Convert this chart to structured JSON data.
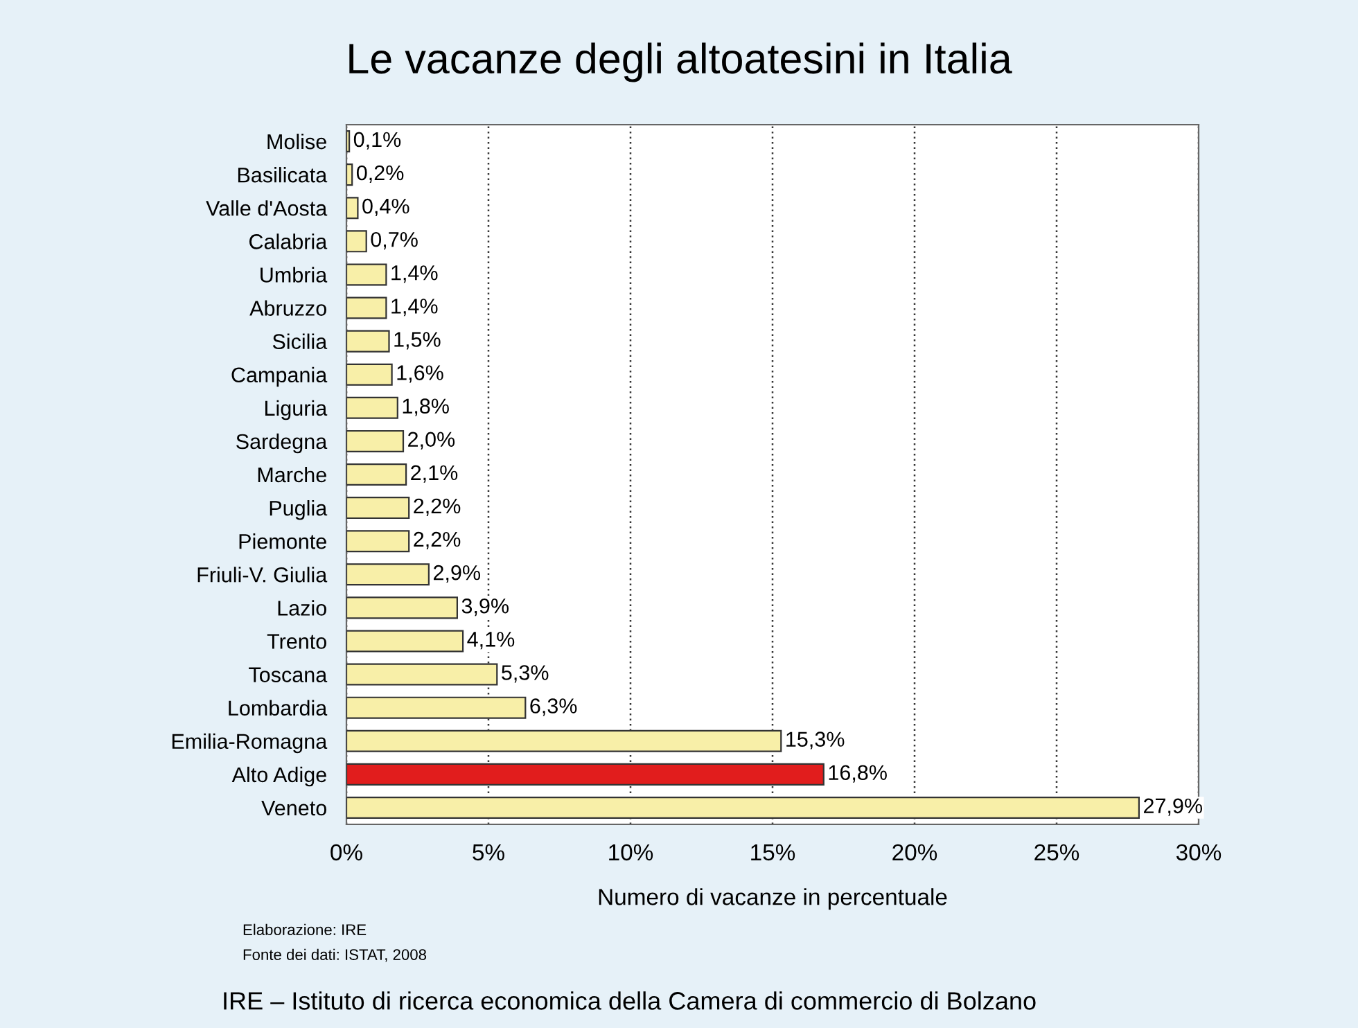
{
  "chart_data": {
    "type": "bar",
    "orientation": "horizontal",
    "title": "Le vacanze degli altoatesini in Italia",
    "xlabel": "Numero di vacanze in percentuale",
    "categories": [
      "Molise",
      "Basilicata",
      "Valle d'Aosta",
      "Calabria",
      "Umbria",
      "Abruzzo",
      "Sicilia",
      "Campania",
      "Liguria",
      "Sardegna",
      "Marche",
      "Puglia",
      "Piemonte",
      "Friuli-V. Giulia",
      "Lazio",
      "Trento",
      "Toscana",
      "Lombardia",
      "Emilia-Romagna",
      "Alto Adige",
      "Veneto"
    ],
    "values": [
      0.1,
      0.2,
      0.4,
      0.7,
      1.4,
      1.4,
      1.5,
      1.6,
      1.8,
      2.0,
      2.1,
      2.2,
      2.2,
      2.9,
      3.9,
      4.1,
      5.3,
      6.3,
      15.3,
      16.8,
      27.9
    ],
    "value_labels": [
      "0,1%",
      "0,2%",
      "0,4%",
      "0,7%",
      "1,4%",
      "1,4%",
      "1,5%",
      "1,6%",
      "1,8%",
      "2,0%",
      "2,1%",
      "2,2%",
      "2,2%",
      "2,9%",
      "3,9%",
      "4,1%",
      "5,3%",
      "6,3%",
      "15,3%",
      "16,8%",
      "27,9%"
    ],
    "colors": [
      "#f8efa8",
      "#f8efa8",
      "#f8efa8",
      "#f8efa8",
      "#f8efa8",
      "#f8efa8",
      "#f8efa8",
      "#f8efa8",
      "#f8efa8",
      "#f8efa8",
      "#f8efa8",
      "#f8efa8",
      "#f8efa8",
      "#f8efa8",
      "#f8efa8",
      "#f8efa8",
      "#f8efa8",
      "#f8efa8",
      "#f8efa8",
      "#e11d1d",
      "#f8efa8"
    ],
    "xlim": [
      0,
      30
    ],
    "xticks": [
      {
        "value": 0,
        "label": "0%"
      },
      {
        "value": 5,
        "label": "5%"
      },
      {
        "value": 10,
        "label": "10%"
      },
      {
        "value": 15,
        "label": "15%"
      },
      {
        "value": 20,
        "label": "20%"
      },
      {
        "value": 25,
        "label": "25%"
      },
      {
        "value": 30,
        "label": "30%"
      }
    ],
    "grid": "x",
    "annotations": [
      "Elaborazione: IRE",
      "Fonte dei dati: ISTAT, 2008",
      "IRE – Istituto di ricerca economica della Camera di commercio di Bolzano"
    ]
  }
}
